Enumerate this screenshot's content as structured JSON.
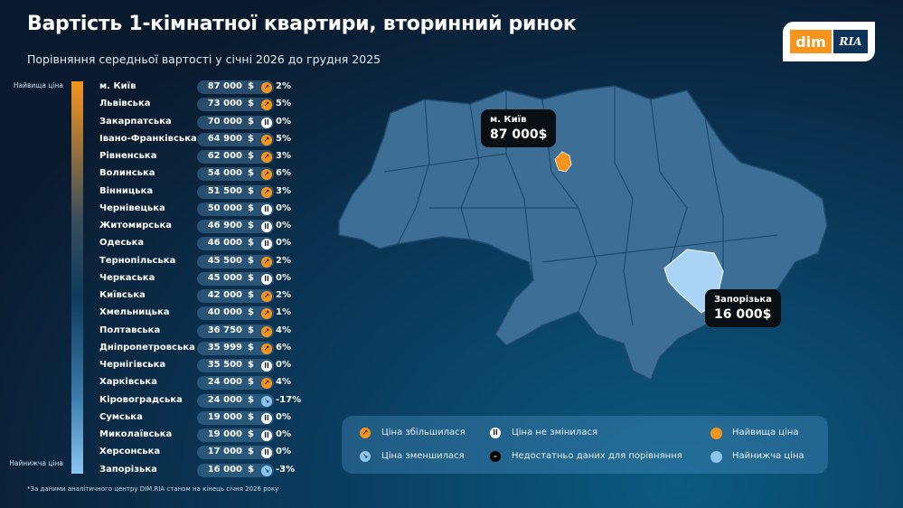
{
  "title": "Вартість 1-кімнатної квартири, вторинний ринок",
  "subtitle": "Порівняння середньої вартості у січні 2026 до грудня 2025",
  "logo": {
    "left": "dim",
    "right": "RIA"
  },
  "scale": {
    "top": "Найвища ціна",
    "bottom": "Найнижча ціна"
  },
  "currency": "$",
  "regions": [
    {
      "name": "м. Київ",
      "price": "87 000",
      "trend": "up",
      "change": "2%"
    },
    {
      "name": "Львівська",
      "price": "73 000",
      "trend": "up",
      "change": "5%"
    },
    {
      "name": "Закарпатська",
      "price": "70 000",
      "trend": "same",
      "change": "0%"
    },
    {
      "name": "Івано-Франківська",
      "price": "64 900",
      "trend": "up",
      "change": "5%"
    },
    {
      "name": "Рівненська",
      "price": "62 000",
      "trend": "up",
      "change": "3%"
    },
    {
      "name": "Волинська",
      "price": "54 000",
      "trend": "up",
      "change": "6%"
    },
    {
      "name": "Вінницька",
      "price": "51 500",
      "trend": "up",
      "change": "3%"
    },
    {
      "name": "Чернівецька",
      "price": "50 000",
      "trend": "same",
      "change": "0%"
    },
    {
      "name": "Житомирська",
      "price": "46 900",
      "trend": "same",
      "change": "0%"
    },
    {
      "name": "Одеська",
      "price": "46 000",
      "trend": "same",
      "change": "0%"
    },
    {
      "name": "Тернопільська",
      "price": "45 500",
      "trend": "up",
      "change": "2%"
    },
    {
      "name": "Черкаська",
      "price": "45 000",
      "trend": "same",
      "change": "0%"
    },
    {
      "name": "Київська",
      "price": "42 000",
      "trend": "up",
      "change": "2%"
    },
    {
      "name": "Хмельницька",
      "price": "40 000",
      "trend": "up",
      "change": "1%"
    },
    {
      "name": "Полтавська",
      "price": "36 750",
      "trend": "up",
      "change": "4%"
    },
    {
      "name": "Дніпропетровська",
      "price": "35 999",
      "trend": "up",
      "change": "6%"
    },
    {
      "name": "Чернігівська",
      "price": "35 500",
      "trend": "same",
      "change": "0%"
    },
    {
      "name": "Харківська",
      "price": "24 000",
      "trend": "up",
      "change": "4%"
    },
    {
      "name": "Кіровоградська",
      "price": "24 000",
      "trend": "down",
      "change": "-17%"
    },
    {
      "name": "Сумська",
      "price": "19 000",
      "trend": "same",
      "change": "0%"
    },
    {
      "name": "Миколаївська",
      "price": "19 000",
      "trend": "same",
      "change": "0%"
    },
    {
      "name": "Херсонська",
      "price": "17 000",
      "trend": "same",
      "change": "0%"
    },
    {
      "name": "Запорізька",
      "price": "16 000",
      "trend": "down",
      "change": "-3%"
    }
  ],
  "map": {
    "highest": {
      "name": "м. Київ",
      "price": "87 000$"
    },
    "lowest": {
      "name": "Запорізька",
      "price": "16 000$"
    },
    "colors": {
      "region": "#3d6f96",
      "border": "#1e4a6e",
      "highest": "#f7941d",
      "lowest": "#a9d4f5"
    }
  },
  "legend": {
    "up": "Ціна збільшилася",
    "down": "Ціна зменшилася",
    "same": "Ціна не змінилася",
    "na": "Недостатньо даних для порівняння",
    "highest": "Найвища ціна",
    "lowest": "Найнижча ціна"
  },
  "colors": {
    "up": "#f7941d",
    "down": "#8cc4f0",
    "same": "#ffffff",
    "na": "#000000"
  },
  "footnote": "*За даними аналітичного центру DIM.RIA станом на кінець січня 2026 року"
}
